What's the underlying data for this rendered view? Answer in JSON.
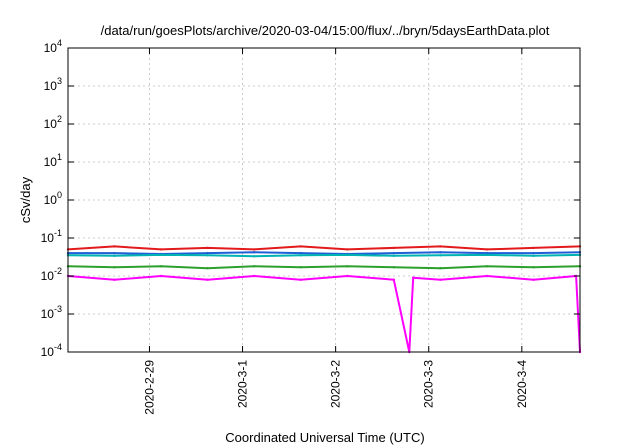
{
  "chart_data": {
    "type": "line",
    "title": "/data/run/goesPlots/archive/2020-03-04/15:00/flux/../bryn/5daysEarthData.plot",
    "xlabel": "Coordinated Universal Time (UTC)",
    "ylabel": "cSv/day",
    "yscale": "log",
    "ylim": [
      0.0001,
      10000
    ],
    "y_ticks": [
      {
        "value": 0.0001,
        "base": "10",
        "exp": "-4"
      },
      {
        "value": 0.001,
        "base": "10",
        "exp": "-3"
      },
      {
        "value": 0.01,
        "base": "10",
        "exp": "-2"
      },
      {
        "value": 0.1,
        "base": "10",
        "exp": "-1"
      },
      {
        "value": 1,
        "base": "10",
        "exp": "0"
      },
      {
        "value": 10,
        "base": "10",
        "exp": "1"
      },
      {
        "value": 100,
        "base": "10",
        "exp": "2"
      },
      {
        "value": 1000,
        "base": "10",
        "exp": "3"
      },
      {
        "value": 10000,
        "base": "10",
        "exp": "4"
      }
    ],
    "xlim": [
      "2020-02-28T03:00",
      "2020-03-04T15:00"
    ],
    "x_ticks": [
      {
        "value": "2020-02-29T00:00",
        "label": "2020-2-29"
      },
      {
        "value": "2020-03-01T00:00",
        "label": "2020-3-1"
      },
      {
        "value": "2020-03-02T00:00",
        "label": "2020-3-2"
      },
      {
        "value": "2020-03-03T00:00",
        "label": "2020-3-3"
      },
      {
        "value": "2020-03-04T00:00",
        "label": "2020-3-4"
      }
    ],
    "grid": true,
    "series": [
      {
        "color": "#e31a1c",
        "x": [
          "2020-02-28T03:00",
          "2020-02-28T15:00",
          "2020-02-29T03:00",
          "2020-02-29T15:00",
          "2020-03-01T03:00",
          "2020-03-01T15:00",
          "2020-03-02T03:00",
          "2020-03-02T15:00",
          "2020-03-03T03:00",
          "2020-03-03T15:00",
          "2020-03-04T03:00",
          "2020-03-04T15:00"
        ],
        "values": [
          0.05,
          0.06,
          0.05,
          0.055,
          0.05,
          0.06,
          0.05,
          0.055,
          0.06,
          0.05,
          0.055,
          0.06
        ]
      },
      {
        "color": "#1f5fd6",
        "x": [
          "2020-02-28T03:00",
          "2020-02-28T15:00",
          "2020-02-29T03:00",
          "2020-02-29T15:00",
          "2020-03-01T03:00",
          "2020-03-01T15:00",
          "2020-03-02T03:00",
          "2020-03-02T15:00",
          "2020-03-03T03:00",
          "2020-03-03T15:00",
          "2020-03-04T03:00",
          "2020-03-04T15:00"
        ],
        "values": [
          0.04,
          0.04,
          0.038,
          0.04,
          0.042,
          0.04,
          0.038,
          0.04,
          0.042,
          0.04,
          0.04,
          0.042
        ]
      },
      {
        "color": "#00b3b3",
        "x": [
          "2020-02-28T03:00",
          "2020-02-28T15:00",
          "2020-02-29T03:00",
          "2020-02-29T15:00",
          "2020-03-01T03:00",
          "2020-03-01T15:00",
          "2020-03-02T03:00",
          "2020-03-02T15:00",
          "2020-03-03T03:00",
          "2020-03-03T15:00",
          "2020-03-04T03:00",
          "2020-03-04T15:00"
        ],
        "values": [
          0.035,
          0.034,
          0.036,
          0.035,
          0.033,
          0.035,
          0.036,
          0.034,
          0.035,
          0.036,
          0.034,
          0.036
        ]
      },
      {
        "color": "#2ca02c",
        "x": [
          "2020-02-28T03:00",
          "2020-02-28T15:00",
          "2020-02-29T03:00",
          "2020-02-29T15:00",
          "2020-03-01T03:00",
          "2020-03-01T15:00",
          "2020-03-02T03:00",
          "2020-03-02T15:00",
          "2020-03-03T03:00",
          "2020-03-03T15:00",
          "2020-03-04T03:00",
          "2020-03-04T15:00"
        ],
        "values": [
          0.018,
          0.017,
          0.018,
          0.016,
          0.018,
          0.017,
          0.018,
          0.017,
          0.016,
          0.018,
          0.017,
          0.018
        ]
      },
      {
        "color": "#ff00ff",
        "x": [
          "2020-02-28T03:00",
          "2020-02-28T15:00",
          "2020-02-29T03:00",
          "2020-02-29T15:00",
          "2020-03-01T03:00",
          "2020-03-01T15:00",
          "2020-03-02T03:00",
          "2020-03-02T15:00",
          "2020-03-02T19:00",
          "2020-03-02T20:00",
          "2020-03-03T03:00",
          "2020-03-03T15:00",
          "2020-03-04T03:00",
          "2020-03-04T14:00",
          "2020-03-04T15:00"
        ],
        "values": [
          0.01,
          0.008,
          0.01,
          0.008,
          0.01,
          0.008,
          0.01,
          0.008,
          0.0001,
          0.009,
          0.008,
          0.01,
          0.008,
          0.01,
          0.0001
        ]
      }
    ]
  }
}
